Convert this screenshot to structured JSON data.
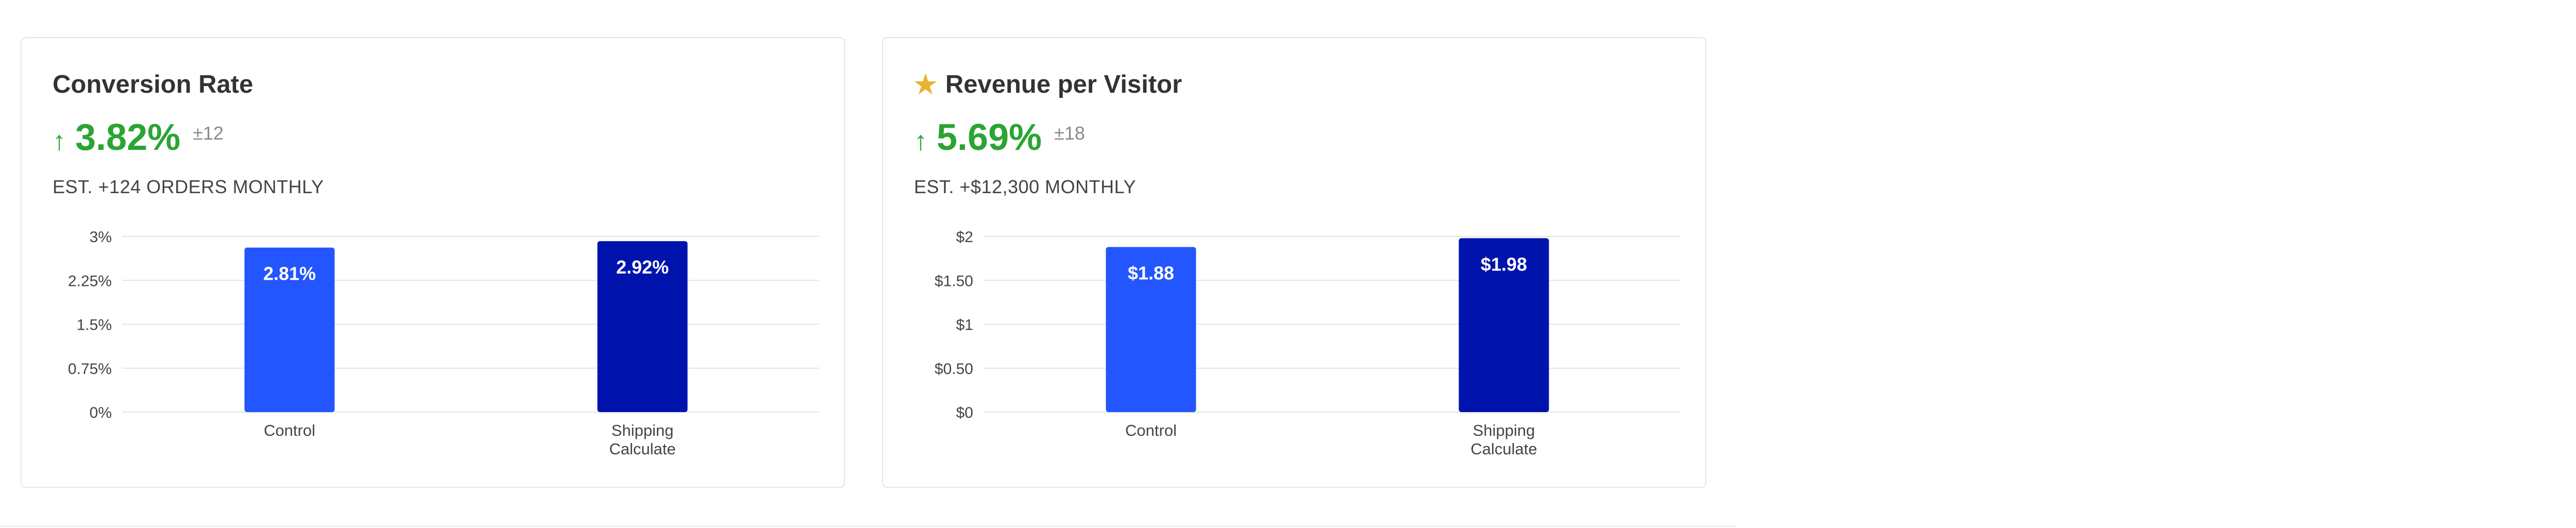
{
  "colors": {
    "control": "#2356ff",
    "variant": "#0014ad",
    "positive": "#2aa533",
    "star": "#e8b32d"
  },
  "cards": [
    {
      "title": "Conversion Rate",
      "starred": false,
      "arrow": "↑",
      "lift": "3.82%",
      "pm": "±12",
      "est": "EST. +124 ORDERS MONTHLY"
    },
    {
      "title": "Revenue per Visitor",
      "starred": true,
      "star_icon": "★",
      "arrow": "↑",
      "lift": "5.69%",
      "pm": "±18",
      "est": "EST. +$12,300 MONTHLY"
    }
  ],
  "chart_data": [
    {
      "type": "bar",
      "categories": [
        [
          "Control"
        ],
        [
          "Shipping",
          "Calculate"
        ]
      ],
      "values": [
        2.81,
        2.92
      ],
      "value_labels": [
        "2.81%",
        "2.92%"
      ],
      "ylim": [
        0,
        3
      ],
      "yticks": [
        0,
        0.75,
        1.5,
        2.25,
        3
      ],
      "ytick_labels": [
        "0%",
        "0.75%",
        "1.5%",
        "2.25%",
        "3%"
      ],
      "grid": true
    },
    {
      "type": "bar",
      "categories": [
        [
          "Control"
        ],
        [
          "Shipping",
          "Calculate"
        ]
      ],
      "values": [
        1.88,
        1.98
      ],
      "value_labels": [
        "$1.88",
        "$1.98"
      ],
      "ylim": [
        0,
        2
      ],
      "yticks": [
        0,
        0.5,
        1,
        1.5,
        2
      ],
      "ytick_labels": [
        "$0",
        "$0.50",
        "$1",
        "$1.50",
        "$2"
      ],
      "grid": true
    }
  ]
}
